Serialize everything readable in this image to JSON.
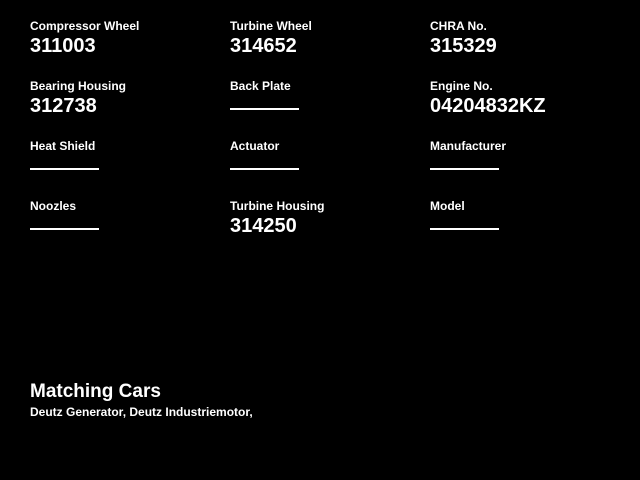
{
  "colors": {
    "background": "#000000",
    "text": "#ffffff",
    "empty_line": "#ffffff"
  },
  "parts_grid": {
    "cells": [
      {
        "label": "Compressor Wheel",
        "value": "311003"
      },
      {
        "label": "Turbine Wheel",
        "value": "314652"
      },
      {
        "label": "CHRA No.",
        "value": "315329"
      },
      {
        "label": "Bearing Housing",
        "value": "312738"
      },
      {
        "label": "Back Plate",
        "value": ""
      },
      {
        "label": "Engine No.",
        "value": "04204832KZ"
      },
      {
        "label": "Heat Shield",
        "value": ""
      },
      {
        "label": "Actuator",
        "value": ""
      },
      {
        "label": "Manufacturer",
        "value": ""
      },
      {
        "label": "Noozles",
        "value": ""
      },
      {
        "label": "Turbine Housing",
        "value": "314250"
      },
      {
        "label": "Model",
        "value": ""
      }
    ]
  },
  "matching_cars": {
    "title": "Matching Cars",
    "items": "Deutz Generator, Deutz Industriemotor,"
  }
}
